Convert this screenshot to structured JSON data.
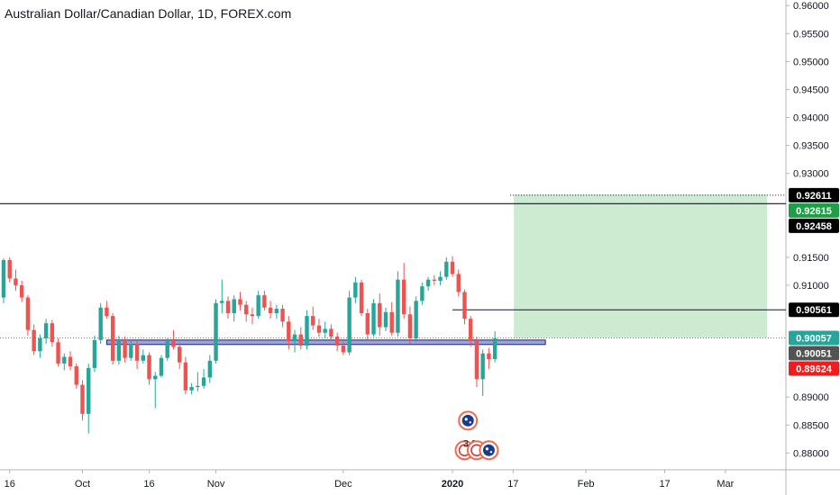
{
  "chart_data": {
    "type": "candlestick",
    "title": "Australian Dollar/Canadian Dollar, 1D, FOREX.com",
    "ylim": [
      0.877,
      0.961
    ],
    "y_ticks": [
      {
        "value": 0.96,
        "label": "0.96000"
      },
      {
        "value": 0.955,
        "label": "0.95500"
      },
      {
        "value": 0.95,
        "label": "0.95000"
      },
      {
        "value": 0.945,
        "label": "0.94500"
      },
      {
        "value": 0.94,
        "label": "0.94000"
      },
      {
        "value": 0.935,
        "label": "0.93500"
      },
      {
        "value": 0.93,
        "label": "0.93000"
      },
      {
        "value": 0.915,
        "label": "0.91500"
      },
      {
        "value": 0.91,
        "label": "0.91000"
      },
      {
        "value": 0.89,
        "label": "0.89000"
      },
      {
        "value": 0.885,
        "label": "0.88500"
      },
      {
        "value": 0.88,
        "label": "0.88000"
      }
    ],
    "x_ticks": [
      {
        "bar": 1,
        "label": "16"
      },
      {
        "bar": 13,
        "label": "Oct"
      },
      {
        "bar": 24,
        "label": "16"
      },
      {
        "bar": 35,
        "label": "Nov"
      },
      {
        "bar": 56,
        "label": "Dec"
      },
      {
        "bar": 74,
        "label": "2020"
      },
      {
        "bar": 84,
        "label": "17"
      },
      {
        "bar": 96,
        "label": "Feb"
      },
      {
        "bar": 109,
        "label": "17"
      },
      {
        "bar": 119,
        "label": "Mar"
      }
    ],
    "candles": [
      [
        0.9078,
        0.9148,
        0.9068,
        0.9145
      ],
      [
        0.9145,
        0.915,
        0.9105,
        0.9112
      ],
      [
        0.9112,
        0.9128,
        0.909,
        0.91
      ],
      [
        0.91,
        0.9108,
        0.907,
        0.9078
      ],
      [
        0.9078,
        0.9082,
        0.901,
        0.902
      ],
      [
        0.902,
        0.903,
        0.8975,
        0.8982
      ],
      [
        0.8982,
        0.9012,
        0.897,
        0.9005
      ],
      [
        0.9005,
        0.904,
        0.8995,
        0.9032
      ],
      [
        0.9032,
        0.9038,
        0.899,
        0.8998
      ],
      [
        0.8998,
        0.9005,
        0.8955,
        0.896
      ],
      [
        0.896,
        0.8978,
        0.8948,
        0.8972
      ],
      [
        0.8972,
        0.8982,
        0.8948,
        0.8955
      ],
      [
        0.8955,
        0.896,
        0.8915,
        0.8922
      ],
      [
        0.8922,
        0.893,
        0.8858,
        0.887
      ],
      [
        0.887,
        0.896,
        0.8835,
        0.8952
      ],
      [
        0.8952,
        0.901,
        0.8945,
        0.9002
      ],
      [
        0.9002,
        0.9068,
        0.8995,
        0.906
      ],
      [
        0.906,
        0.9072,
        0.904,
        0.9045
      ],
      [
        0.9045,
        0.905,
        0.8958,
        0.8965
      ],
      [
        0.8965,
        0.901,
        0.8958,
        0.9
      ],
      [
        0.9,
        0.9008,
        0.8962,
        0.897
      ],
      [
        0.897,
        0.9002,
        0.8965,
        0.8995
      ],
      [
        0.8995,
        0.9,
        0.895,
        0.8965
      ],
      [
        0.8965,
        0.8985,
        0.896,
        0.8975
      ],
      [
        0.8975,
        0.898,
        0.8922,
        0.8932
      ],
      [
        0.8932,
        0.8945,
        0.888,
        0.8938
      ],
      [
        0.8938,
        0.8975,
        0.8935,
        0.897
      ],
      [
        0.897,
        0.9005,
        0.8965,
        0.9
      ],
      [
        0.9,
        0.902,
        0.8985,
        0.899
      ],
      [
        0.899,
        0.8998,
        0.895,
        0.8962
      ],
      [
        0.8962,
        0.8972,
        0.8905,
        0.8912
      ],
      [
        0.8912,
        0.8925,
        0.8905,
        0.8918
      ],
      [
        0.8918,
        0.8945,
        0.891,
        0.892
      ],
      [
        0.892,
        0.895,
        0.8915,
        0.8935
      ],
      [
        0.8935,
        0.8975,
        0.8925,
        0.8965
      ],
      [
        0.8965,
        0.9075,
        0.896,
        0.9068
      ],
      [
        0.9068,
        0.911,
        0.905,
        0.9072
      ],
      [
        0.9072,
        0.908,
        0.904,
        0.905
      ],
      [
        0.905,
        0.9082,
        0.9035,
        0.9075
      ],
      [
        0.9075,
        0.9088,
        0.9055,
        0.9065
      ],
      [
        0.9065,
        0.9072,
        0.9035,
        0.9048
      ],
      [
        0.9048,
        0.906,
        0.903,
        0.9045
      ],
      [
        0.9045,
        0.909,
        0.904,
        0.9082
      ],
      [
        0.9082,
        0.909,
        0.9055,
        0.906
      ],
      [
        0.906,
        0.9072,
        0.904,
        0.905
      ],
      [
        0.905,
        0.9065,
        0.904,
        0.9058
      ],
      [
        0.9058,
        0.9065,
        0.9025,
        0.9035
      ],
      [
        0.9035,
        0.9045,
        0.8985,
        0.9
      ],
      [
        0.9,
        0.902,
        0.898,
        0.9012
      ],
      [
        0.9012,
        0.9025,
        0.8985,
        0.8992
      ],
      [
        0.8992,
        0.9055,
        0.8985,
        0.9045
      ],
      [
        0.9045,
        0.9062,
        0.902,
        0.9028
      ],
      [
        0.9028,
        0.904,
        0.9008,
        0.9015
      ],
      [
        0.9015,
        0.9035,
        0.9005,
        0.9022
      ],
      [
        0.9022,
        0.903,
        0.9,
        0.9008
      ],
      [
        0.9008,
        0.9015,
        0.8982,
        0.8992
      ],
      [
        0.8992,
        0.9,
        0.8975,
        0.898
      ],
      [
        0.898,
        0.909,
        0.8975,
        0.9078
      ],
      [
        0.9078,
        0.9115,
        0.9068,
        0.9105
      ],
      [
        0.9105,
        0.911,
        0.9045,
        0.905
      ],
      [
        0.905,
        0.9058,
        0.9002,
        0.9012
      ],
      [
        0.9012,
        0.9075,
        0.9008,
        0.9068
      ],
      [
        0.9068,
        0.9085,
        0.901,
        0.9025
      ],
      [
        0.9025,
        0.906,
        0.9018,
        0.9052
      ],
      [
        0.9052,
        0.907,
        0.901,
        0.9015
      ],
      [
        0.9015,
        0.9125,
        0.9008,
        0.911
      ],
      [
        0.911,
        0.914,
        0.904,
        0.9048
      ],
      [
        0.9048,
        0.9062,
        0.8995,
        0.9005
      ],
      [
        0.9005,
        0.908,
        0.8998,
        0.9072
      ],
      [
        0.9072,
        0.9105,
        0.9065,
        0.9098
      ],
      [
        0.9098,
        0.9115,
        0.909,
        0.911
      ],
      [
        0.911,
        0.9118,
        0.91,
        0.9108
      ],
      [
        0.9108,
        0.9125,
        0.91,
        0.9115
      ],
      [
        0.9115,
        0.915,
        0.911,
        0.9142
      ],
      [
        0.9142,
        0.9152,
        0.9115,
        0.912
      ],
      [
        0.912,
        0.9128,
        0.908,
        0.9088
      ],
      [
        0.9088,
        0.9092,
        0.903,
        0.904
      ],
      [
        0.904,
        0.9045,
        0.899,
        0.9
      ],
      [
        0.9,
        0.9008,
        0.8918,
        0.8932
      ],
      [
        0.8932,
        0.8985,
        0.8902,
        0.8978
      ],
      [
        0.8978,
        0.8988,
        0.895,
        0.8968
      ],
      [
        0.8968,
        0.9018,
        0.8962,
        0.9005
      ]
    ],
    "zones": [
      {
        "kind": "support",
        "y0": 0.8994,
        "y1": 0.9002
      },
      {
        "kind": "target",
        "y0": 0.9006,
        "y1": 0.9262
      },
      {
        "kind": "stop",
        "y0": 0.8962,
        "y1": 0.9006
      }
    ],
    "levels": [
      {
        "value": 0.92611,
        "label": "0.92611",
        "style": "dotted"
      },
      {
        "value": 0.92458,
        "label": "0.92458",
        "style": "solid"
      },
      {
        "value": 0.90561,
        "label": "0.90561",
        "style": "solid"
      },
      {
        "value": 0.90057,
        "label": "0.90057",
        "style": "dotted"
      }
    ],
    "price_tags": [
      {
        "value": 0.92611,
        "label": "0.92611",
        "color": "#000000"
      },
      {
        "value": 0.92615,
        "label": "0.92615",
        "color": "#1e9e47"
      },
      {
        "value": 0.92458,
        "label": "0.92458",
        "color": "#000000"
      },
      {
        "value": 0.90561,
        "label": "0.90561",
        "color": "#000000"
      },
      {
        "value": 0.90057,
        "label": "0.90057",
        "color": "#26a69a"
      },
      {
        "value": 0.90051,
        "label": "0.90051",
        "color": "#535353"
      },
      {
        "value": 0.89624,
        "label": "0.89624",
        "color": "#ef1d1d"
      }
    ],
    "events": [
      {
        "bar": 77,
        "price": 0.8858,
        "icon": "au-flag-icon",
        "count": ""
      },
      {
        "bar": 76,
        "price": 0.8805,
        "icon": "event-icon",
        "count": "6"
      },
      {
        "bar": 78,
        "price": 0.8805,
        "icon": "event-icon",
        "count": "3"
      },
      {
        "bar": 80,
        "price": 0.8805,
        "icon": "au-flag-icon",
        "count": ""
      }
    ],
    "colors": {
      "up": "#26a69a",
      "down": "#ef5350",
      "target_zone": "#cdebd0",
      "stop_zone": "#fdd4d4",
      "support_zone": "#4a5bb5"
    }
  }
}
